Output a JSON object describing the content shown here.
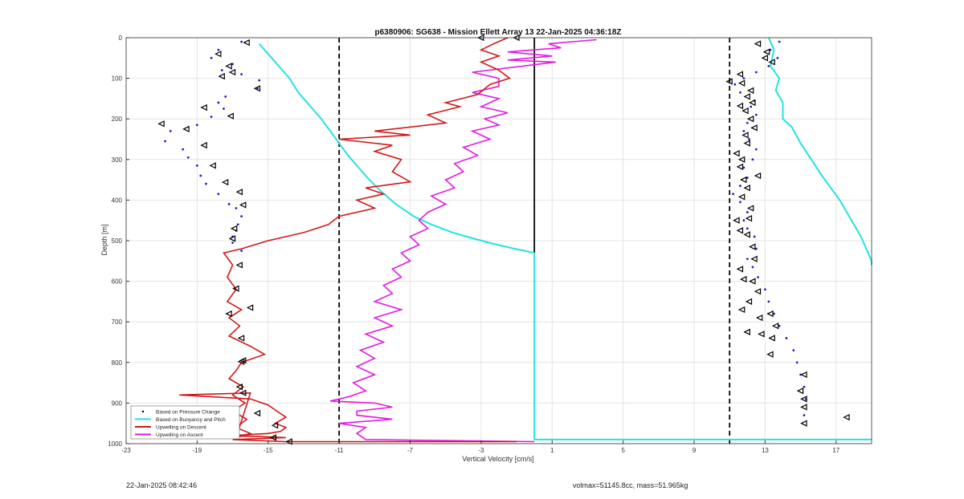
{
  "chart_data": {
    "type": "scatter",
    "title": "p6380906: SG638 - Mission Ellett Array 13 22-Jan-2025 04:36:18Z",
    "xlabel": "Vertical Velocity [cm/s]",
    "ylabel": "Depth [m]",
    "xlim": [
      -23,
      19
    ],
    "ylim": [
      1000,
      0
    ],
    "xticks": [
      -23,
      -19,
      -15,
      -11,
      -7,
      -3,
      1,
      5,
      9,
      13,
      17
    ],
    "yticks": [
      0,
      100,
      200,
      300,
      400,
      500,
      600,
      700,
      800,
      900,
      1000
    ],
    "grid": true,
    "legend_position": "bottom-left",
    "reference_lines": [
      {
        "x": -11,
        "style": "dashed",
        "color": "#000000"
      },
      {
        "x": 11,
        "style": "dashed",
        "color": "#000000"
      },
      {
        "x": 0,
        "style": "solid",
        "color": "#000000",
        "y_range": [
          0,
          530
        ]
      }
    ],
    "series": [
      {
        "name": "Based on Pressure Change",
        "kind": "points",
        "color": "#1f1fd0",
        "descent": {
          "x": [
            -16.5,
            -17.8,
            -18.2,
            -17.0,
            -17.6,
            -16.5,
            -15.5,
            -15.6,
            -17.4,
            -17.8,
            -17.5,
            -18.2,
            -19.0,
            -20.5,
            -20.8,
            -19.8,
            -19.5,
            -19.0,
            -18.8,
            -18.5,
            -17.8,
            -17.2,
            -16.8,
            -16.5,
            -16.7,
            -16.8,
            -17.0,
            -17.0,
            -16.5
          ],
          "y": [
            10,
            30,
            50,
            65,
            80,
            90,
            105,
            125,
            145,
            160,
            175,
            195,
            215,
            230,
            255,
            275,
            295,
            315,
            340,
            360,
            385,
            410,
            420,
            440,
            460,
            475,
            490,
            505,
            525
          ]
        },
        "ascent": {
          "x": [
            13.8,
            13.3,
            13.7,
            13.2,
            12.5,
            11.8,
            11.3,
            11.6,
            12.4,
            12.2,
            12.5,
            12.0,
            11.8,
            12.1,
            12.5,
            12.3,
            11.8,
            12.0,
            11.6,
            11.2,
            11.6,
            12.0,
            11.8,
            12.0,
            12.4,
            12.5,
            12.0,
            12.3,
            12.6,
            13.0,
            13.2,
            13.5,
            13.8,
            14.2,
            14.6,
            14.8,
            15.0,
            15.2,
            15.3,
            15.2
          ],
          "y": [
            10,
            30,
            50,
            70,
            85,
            100,
            115,
            135,
            155,
            170,
            190,
            210,
            230,
            250,
            275,
            300,
            320,
            345,
            365,
            385,
            405,
            430,
            450,
            470,
            490,
            520,
            545,
            565,
            590,
            620,
            650,
            680,
            710,
            740,
            770,
            800,
            830,
            860,
            890,
            930
          ]
        }
      },
      {
        "name": "Based on Buoyancy and Pitch",
        "kind": "line",
        "color": "#22e2e2",
        "descent": {
          "x": [
            -15.5,
            -15.0,
            -14.4,
            -13.8,
            -13.3,
            -12.6,
            -12.0,
            -11.5,
            -11.0,
            -10.5,
            -9.9,
            -9.3,
            -8.6,
            -7.8,
            -6.8,
            -5.8,
            -4.6,
            -3.4,
            -2.3,
            -1.1,
            0
          ],
          "y": [
            15,
            40,
            70,
            100,
            135,
            170,
            200,
            230,
            260,
            290,
            320,
            350,
            380,
            410,
            440,
            460,
            480,
            495,
            508,
            520,
            530
          ]
        },
        "ascent": {
          "x": [
            13.2,
            13.5,
            13.3,
            13.8,
            13.6,
            14.0,
            14.0,
            14.5,
            15.0,
            15.6,
            16.2,
            16.7,
            17.2,
            17.6,
            18.0,
            18.4,
            18.7,
            19.0,
            19.0
          ],
          "y": [
            0,
            30,
            70,
            100,
            130,
            160,
            200,
            220,
            260,
            300,
            340,
            370,
            400,
            430,
            460,
            490,
            520,
            550,
            560
          ]
        },
        "bottom": {
          "x": [
            0,
            0,
            19
          ],
          "y": [
            530,
            990,
            990
          ]
        }
      },
      {
        "name": "Upwelling on Descent",
        "kind": "line",
        "color": "#d01818",
        "x": [
          -1.5,
          -2.3,
          -3.0,
          -2.0,
          -3.0,
          -2.0,
          -1.4,
          -2.5,
          -3.2,
          -5.0,
          -4.2,
          -6.0,
          -5.0,
          -9.0,
          -7.0,
          -11.0,
          -8.0,
          -9.0,
          -7.5,
          -8.0,
          -7.0,
          -9.5,
          -8.5,
          -10.0,
          -9.0,
          -11.0,
          -11.6,
          -13.0,
          -15.0,
          -16.5,
          -17.5,
          -17.0,
          -17.3,
          -16.8,
          -17.3,
          -16.5,
          -17.2,
          -16.6,
          -17.2,
          -16.0,
          -15.2,
          -16.5,
          -16.8,
          -17.2,
          -16.4,
          -17.0,
          -16.3,
          -17.0,
          -16.2,
          -16.8,
          -16.0,
          -16.8,
          -16.0,
          -20.0,
          -16.0,
          -15.0,
          -14.5,
          -14.0,
          -14.6,
          -14.0,
          -14.3,
          -15.0,
          -17.0,
          -14.0,
          -17.0,
          -14.0,
          -1.0
        ],
        "y": [
          0,
          15,
          30,
          45,
          60,
          80,
          100,
          115,
          140,
          160,
          170,
          190,
          210,
          230,
          240,
          250,
          265,
          280,
          300,
          330,
          355,
          370,
          385,
          400,
          420,
          440,
          460,
          480,
          500,
          520,
          530,
          560,
          590,
          620,
          650,
          670,
          690,
          710,
          735,
          760,
          780,
          800,
          820,
          840,
          860,
          880,
          900,
          920,
          940,
          960,
          975,
          985,
          875,
          880,
          890,
          905,
          920,
          935,
          950,
          960,
          970,
          975,
          980,
          985,
          990,
          995,
          995
        ]
      },
      {
        "name": "Upwelling on Ascent",
        "kind": "line",
        "color": "#e21ae2",
        "x": [
          3.5,
          0.8,
          1.5,
          -1.5,
          1.0,
          -1.5,
          1.2,
          -3.5,
          -2.0,
          -2.0,
          -3.5,
          -2.0,
          -3.0,
          -1.5,
          -2.8,
          -2.0,
          -3.5,
          -2.5,
          -4.0,
          -3.2,
          -4.5,
          -4.0,
          -5.0,
          -4.5,
          -5.8,
          -5.0,
          -6.0,
          -6.5,
          -6.0,
          -7.0,
          -6.5,
          -7.5,
          -7.0,
          -8.0,
          -7.5,
          -8.5,
          -8.0,
          -9.0,
          -7.5,
          -9.0,
          -8.0,
          -9.5,
          -8.5,
          -9.8,
          -9.0,
          -10.0,
          -9.0,
          -10.2,
          -9.5,
          -10.5,
          -11.5,
          -9.0,
          -8.0,
          -10.0,
          -10.0,
          -8.0,
          -11.0,
          -9.5,
          -10.0,
          -9.5,
          0
        ],
        "y": [
          5,
          15,
          25,
          35,
          45,
          55,
          60,
          85,
          100,
          120,
          135,
          150,
          170,
          185,
          200,
          215,
          230,
          250,
          270,
          290,
          310,
          330,
          350,
          370,
          390,
          410,
          430,
          450,
          470,
          490,
          510,
          530,
          550,
          570,
          590,
          610,
          630,
          650,
          670,
          690,
          710,
          730,
          750,
          770,
          790,
          810,
          830,
          850,
          870,
          885,
          895,
          900,
          910,
          920,
          930,
          940,
          950,
          960,
          975,
          990,
          995
        ]
      }
    ],
    "markers": {
      "kind": "open-triangles",
      "color": "#000000",
      "x": [
        -16.2,
        -17.8,
        -17.2,
        -17.0,
        -17.6,
        -15.6,
        -18.6,
        -17.1,
        -21.0,
        -19.6,
        -18.6,
        -18.1,
        -17.4,
        -16.6,
        -16.4,
        -16.9,
        -17.0,
        -16.6,
        -16.8,
        -16.0,
        -17.2,
        -16.5,
        -16.4,
        -16.5,
        -16.6,
        -16.4,
        -15.6,
        -14.6,
        -14.7,
        -13.8,
        -3.0,
        -1.0,
        12.6,
        13.1,
        13.0,
        13.4,
        11.6,
        11.0,
        11.7,
        12.2,
        12.0,
        12.3,
        11.6,
        11.9,
        12.2,
        12.4,
        11.9,
        12.0,
        11.4,
        11.7,
        11.6,
        12.6,
        11.8,
        12.0,
        11.7,
        12.2,
        12.1,
        11.4,
        11.6,
        12.0,
        12.3,
        12.4,
        11.6,
        11.8,
        12.3,
        12.6,
        12.1,
        11.7,
        13.3,
        12.7,
        13.6,
        12.0,
        12.8,
        13.4,
        13.3,
        15.2,
        15.0,
        15.2,
        15.2,
        17.6,
        15.2
      ],
      "y": [
        12,
        40,
        70,
        85,
        95,
        125,
        172,
        193,
        212,
        225,
        265,
        315,
        356,
        380,
        412,
        470,
        495,
        560,
        618,
        665,
        680,
        740,
        795,
        798,
        860,
        875,
        925,
        955,
        985,
        995,
        0,
        0,
        15,
        35,
        50,
        60,
        90,
        108,
        112,
        130,
        145,
        160,
        168,
        180,
        200,
        222,
        240,
        260,
        285,
        300,
        318,
        340,
        350,
        370,
        392,
        420,
        445,
        450,
        475,
        485,
        515,
        545,
        570,
        595,
        600,
        625,
        650,
        670,
        680,
        690,
        710,
        725,
        730,
        740,
        780,
        830,
        870,
        890,
        910,
        935,
        950
      ]
    }
  },
  "footer": {
    "left": "22-Jan-2025 08:42:46",
    "right": "volmax=51145.8cc, mass=51.965kg"
  }
}
